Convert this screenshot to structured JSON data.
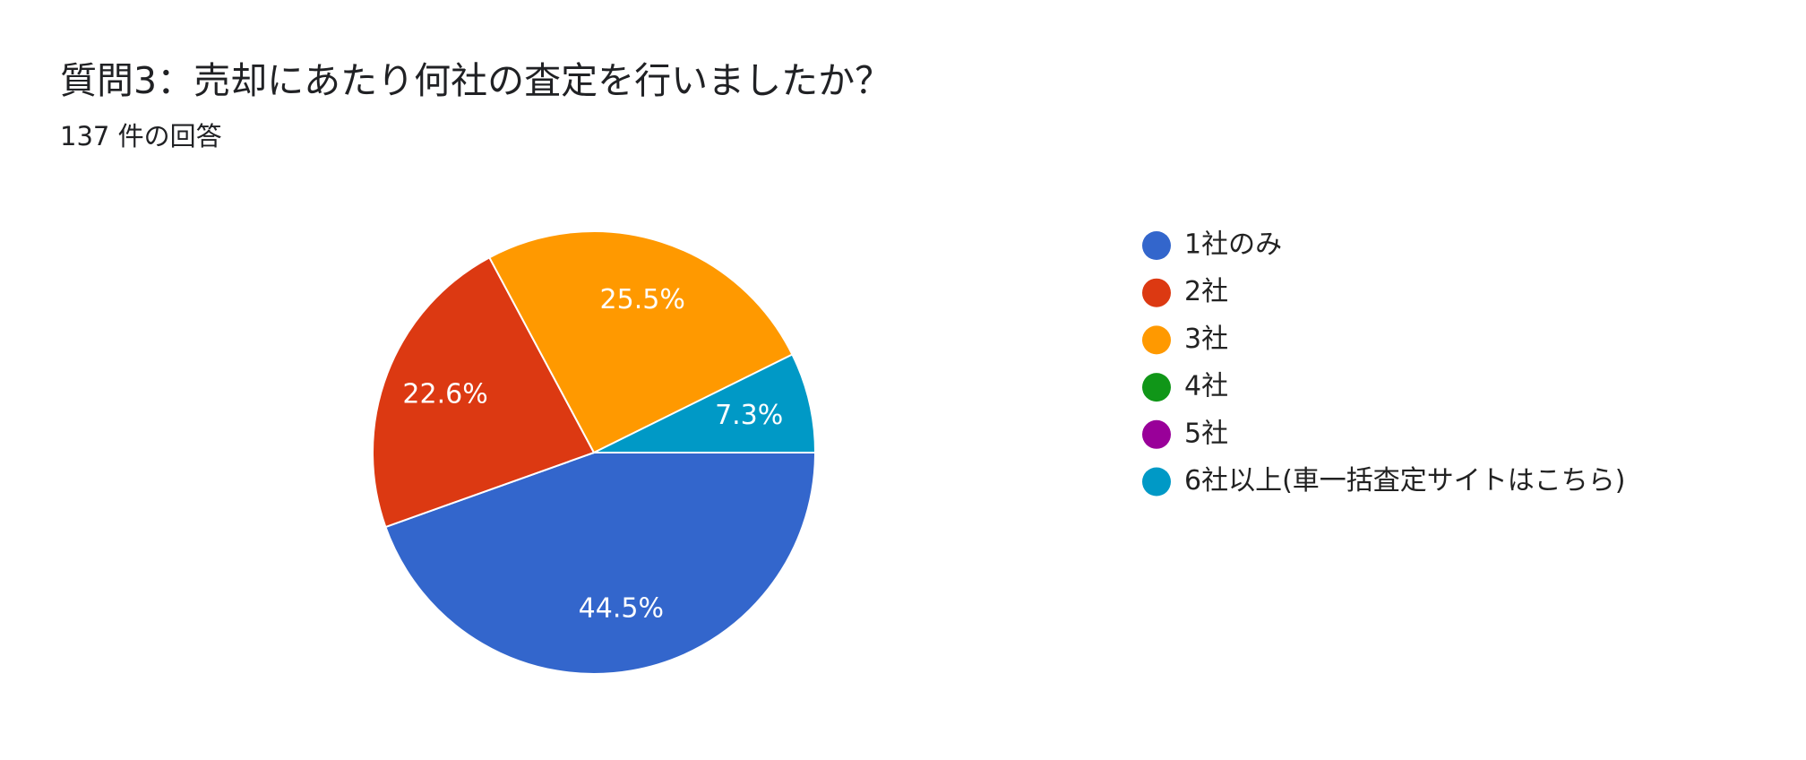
{
  "chart_data": {
    "type": "pie",
    "title": "質問3：売却にあたり何社の査定を行いましたか？",
    "subtitle": "137 件の回答",
    "categories": [
      "1社のみ",
      "2社",
      "3社",
      "4社",
      "5社",
      "6社以上(車一括査定サイトはこちら)"
    ],
    "values": [
      44.5,
      22.6,
      25.5,
      0,
      0,
      7.3
    ],
    "value_labels": [
      "44.5%",
      "22.6%",
      "25.5%",
      null,
      null,
      "7.3%"
    ],
    "colors": [
      "#3366cc",
      "#dc3912",
      "#ff9900",
      "#109618",
      "#990099",
      "#0099c6"
    ],
    "legend": "right"
  }
}
